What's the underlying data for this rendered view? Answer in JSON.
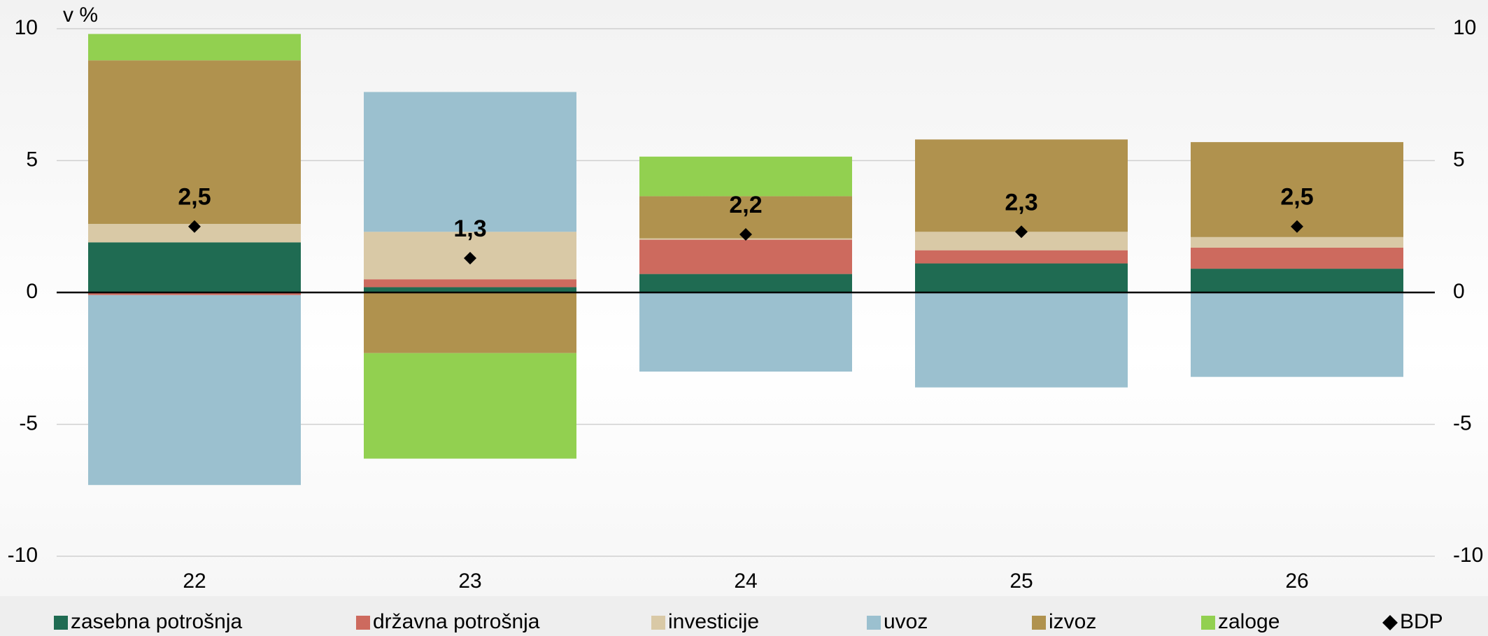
{
  "chart_data": {
    "type": "bar",
    "stacked": true,
    "y_axis_label": "v %",
    "categories": [
      "22",
      "23",
      "24",
      "25",
      "26"
    ],
    "series": [
      {
        "name": "zasebna potrošnja",
        "color": "#1f6b52",
        "values": [
          1.9,
          0.2,
          0.7,
          1.1,
          0.9
        ]
      },
      {
        "name": "državna potrošnja",
        "color": "#cd6a5e",
        "values": [
          -0.1,
          0.3,
          1.3,
          0.5,
          0.8
        ]
      },
      {
        "name": "investicije",
        "color": "#d9c9a6",
        "values": [
          0.7,
          1.8,
          0.05,
          0.7,
          0.4
        ]
      },
      {
        "name": "uvoz",
        "color": "#9bc0cf",
        "values": [
          -7.2,
          5.3,
          -3.0,
          -3.6,
          -3.2
        ]
      },
      {
        "name": "izvoz",
        "color": "#b0924e",
        "values": [
          6.2,
          -2.3,
          1.6,
          3.5,
          3.6
        ]
      },
      {
        "name": "zaloge",
        "color": "#92d050",
        "values": [
          1.0,
          -4.0,
          1.5,
          0,
          0
        ]
      },
      {
        "name": "BDP",
        "type": "scatter",
        "color": "#000000",
        "values": [
          2.5,
          1.3,
          2.2,
          2.3,
          2.5
        ],
        "value_labels": [
          "2,5",
          "1,3",
          "2,2",
          "2,3",
          "2,5"
        ]
      }
    ],
    "ylim": [
      -10,
      10
    ],
    "yticks": [
      10,
      5,
      0,
      -5,
      -10
    ],
    "grid": true,
    "legend": "bottom"
  }
}
